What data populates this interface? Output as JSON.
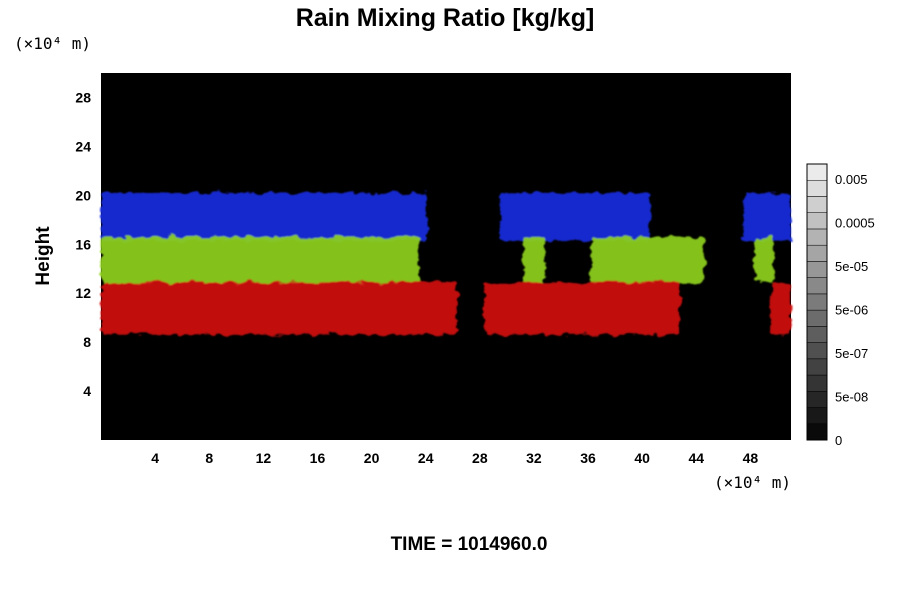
{
  "chart_data": {
    "type": "heatmap",
    "title": "Rain Mixing Ratio [kg/kg]",
    "ylabel": "Height",
    "x_unit_label": "(×10⁴ m)",
    "y_unit_label": "(×10⁴ m)",
    "xlim": [
      0,
      51
    ],
    "ylim": [
      0,
      30
    ],
    "x_ticks": [
      4,
      8,
      12,
      16,
      20,
      24,
      28,
      32,
      36,
      40,
      44,
      48
    ],
    "y_ticks": [
      4,
      8,
      12,
      16,
      20,
      24,
      28
    ],
    "colorbar": {
      "labels": [
        "0.005",
        "0.0005",
        "5e-05",
        "5e-06",
        "5e-07",
        "5e-08",
        "0"
      ],
      "levels": 17
    },
    "background_color": "#000000",
    "band_colors": {
      "blue": "#1a2ee0",
      "green": "#8fd21e",
      "red": "#d21212"
    },
    "bands": [
      {
        "color": "blue",
        "y_range": [
          16.3,
          20.2
        ],
        "x_segments": [
          [
            0,
            24.1
          ],
          [
            29.5,
            40.6
          ],
          [
            47.5,
            51
          ]
        ]
      },
      {
        "color": "green",
        "y_range": [
          12.8,
          16.6
        ],
        "x_segments": [
          [
            0,
            23.5
          ],
          [
            31.2,
            32.8
          ],
          [
            36.2,
            44.6
          ],
          [
            48.3,
            49.7
          ]
        ]
      },
      {
        "color": "red",
        "y_range": [
          8.6,
          12.9
        ],
        "x_segments": [
          [
            0,
            26.3
          ],
          [
            28.3,
            42.8
          ],
          [
            49.5,
            51
          ]
        ]
      }
    ],
    "footer": "TIME = 1014960.0"
  }
}
